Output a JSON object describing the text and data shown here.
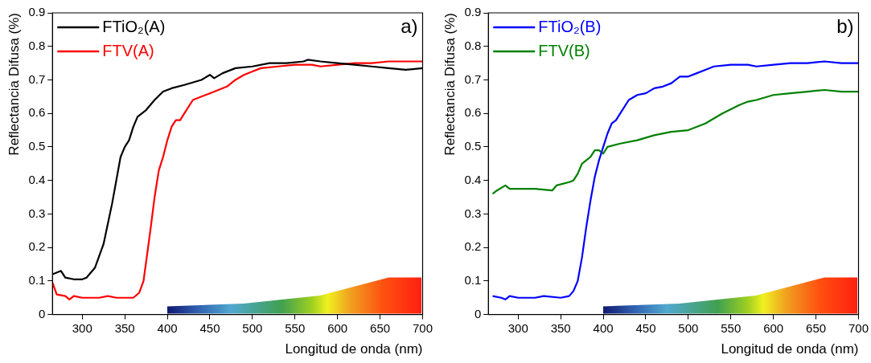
{
  "chart_data": [
    {
      "type": "line",
      "xlabel": "Longitud de onda (nm)",
      "ylabel": "Reflectancia Difusa (%)",
      "annotations": [
        "a)"
      ],
      "xlim": [
        265,
        700
      ],
      "xticks": [
        300,
        350,
        400,
        450,
        500,
        550,
        600,
        650,
        700
      ],
      "ylim": [
        0,
        0.9
      ],
      "yticks": [
        0,
        0.1,
        0.2,
        0.3,
        0.4,
        0.5,
        0.6,
        0.7,
        0.8,
        0.9
      ],
      "grid": false,
      "legend": "top left",
      "marker": "none",
      "line_style": "solid",
      "series": [
        {
          "name": "FTiO₂(A)",
          "color": "#000000",
          "x": [
            265,
            275,
            280,
            290,
            300,
            305,
            315,
            325,
            335,
            345,
            350,
            355,
            360,
            365,
            375,
            385,
            395,
            405,
            420,
            440,
            450,
            455,
            465,
            480,
            500,
            520,
            540,
            560,
            565,
            580,
            600,
            620,
            640,
            660,
            680,
            700
          ],
          "values": [
            0.12,
            0.13,
            0.11,
            0.105,
            0.105,
            0.11,
            0.14,
            0.21,
            0.33,
            0.47,
            0.5,
            0.52,
            0.56,
            0.59,
            0.61,
            0.64,
            0.665,
            0.675,
            0.685,
            0.7,
            0.715,
            0.705,
            0.72,
            0.735,
            0.74,
            0.75,
            0.75,
            0.755,
            0.76,
            0.755,
            0.75,
            0.745,
            0.74,
            0.735,
            0.73,
            0.735
          ]
        },
        {
          "name": "FTV(A)",
          "color": "#ff0000",
          "x": [
            265,
            270,
            280,
            285,
            290,
            300,
            320,
            330,
            340,
            360,
            367,
            372,
            380,
            385,
            390,
            395,
            400,
            405,
            410,
            415,
            420,
            430,
            440,
            450,
            460,
            470,
            480,
            490,
            500,
            510,
            530,
            550,
            570,
            580,
            600,
            620,
            640,
            660,
            680,
            700
          ],
          "values": [
            0.095,
            0.06,
            0.055,
            0.045,
            0.055,
            0.05,
            0.05,
            0.055,
            0.05,
            0.05,
            0.065,
            0.1,
            0.25,
            0.35,
            0.43,
            0.47,
            0.52,
            0.56,
            0.58,
            0.58,
            0.6,
            0.64,
            0.65,
            0.66,
            0.67,
            0.68,
            0.7,
            0.715,
            0.725,
            0.735,
            0.74,
            0.745,
            0.745,
            0.74,
            0.745,
            0.75,
            0.75,
            0.755,
            0.755,
            0.755
          ]
        }
      ]
    },
    {
      "type": "line",
      "xlabel": "Longitud de onda (nm)",
      "ylabel": "Reflectancia Difusa (%)",
      "annotations": [
        "b)"
      ],
      "xlim": [
        265,
        700
      ],
      "xticks": [
        300,
        350,
        400,
        450,
        500,
        550,
        600,
        650,
        700
      ],
      "ylim": [
        0,
        0.9
      ],
      "yticks": [
        0,
        0.1,
        0.2,
        0.3,
        0.4,
        0.5,
        0.6,
        0.7,
        0.8,
        0.9
      ],
      "grid": false,
      "legend": "top left",
      "marker": "none",
      "line_style": "solid",
      "series": [
        {
          "name": "FTiO₂(B)",
          "color": "#0000ff",
          "x": [
            270,
            280,
            285,
            290,
            300,
            320,
            330,
            350,
            360,
            365,
            370,
            375,
            380,
            385,
            390,
            395,
            400,
            405,
            410,
            415,
            420,
            430,
            440,
            450,
            460,
            470,
            480,
            490,
            500,
            510,
            520,
            530,
            550,
            570,
            580,
            600,
            620,
            640,
            660,
            680,
            700
          ],
          "values": [
            0.055,
            0.05,
            0.045,
            0.055,
            0.05,
            0.05,
            0.055,
            0.05,
            0.055,
            0.07,
            0.1,
            0.17,
            0.26,
            0.34,
            0.41,
            0.46,
            0.5,
            0.54,
            0.57,
            0.58,
            0.6,
            0.64,
            0.655,
            0.66,
            0.675,
            0.68,
            0.69,
            0.71,
            0.71,
            0.72,
            0.73,
            0.74,
            0.745,
            0.745,
            0.74,
            0.745,
            0.75,
            0.75,
            0.755,
            0.75,
            0.75
          ]
        },
        {
          "name": "FTV(B)",
          "color": "#008000",
          "x": [
            270,
            275,
            285,
            290,
            300,
            320,
            340,
            345,
            360,
            365,
            370,
            375,
            380,
            385,
            390,
            395,
            400,
            405,
            420,
            440,
            460,
            480,
            500,
            520,
            540,
            560,
            570,
            580,
            600,
            620,
            640,
            660,
            680,
            700
          ],
          "values": [
            0.36,
            0.37,
            0.385,
            0.375,
            0.375,
            0.375,
            0.37,
            0.385,
            0.395,
            0.4,
            0.42,
            0.45,
            0.46,
            0.47,
            0.49,
            0.49,
            0.48,
            0.5,
            0.51,
            0.52,
            0.535,
            0.545,
            0.55,
            0.57,
            0.6,
            0.625,
            0.635,
            0.64,
            0.655,
            0.66,
            0.665,
            0.67,
            0.665,
            0.665
          ]
        }
      ]
    }
  ]
}
